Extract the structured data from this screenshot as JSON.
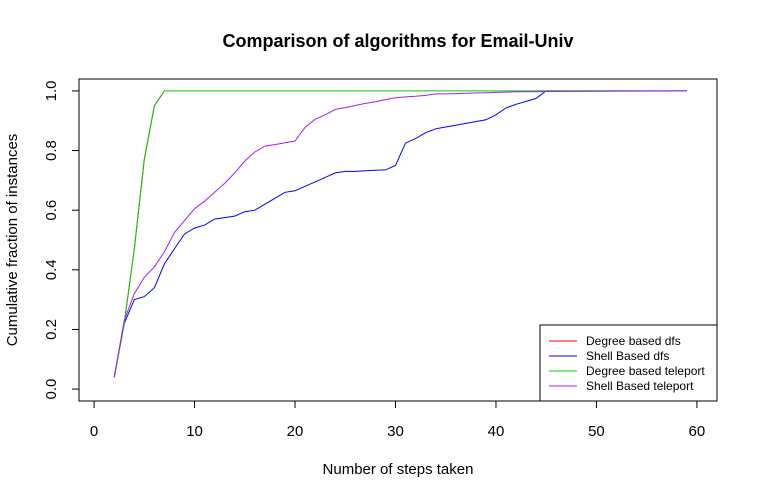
{
  "chart_data": {
    "type": "line",
    "title": "Comparison of algorithms for Email-Univ",
    "xlabel": "Number of steps taken",
    "ylabel": "Cumulative fraction of instances",
    "xlim": [
      -1.5,
      62
    ],
    "ylim": [
      -0.04,
      1.04
    ],
    "xticks": [
      0,
      10,
      20,
      30,
      40,
      50,
      60
    ],
    "yticks": [
      0.0,
      0.2,
      0.4,
      0.6,
      0.8,
      1.0
    ],
    "xtick_labels": [
      "0",
      "10",
      "20",
      "30",
      "40",
      "50",
      "60"
    ],
    "ytick_labels": [
      "0.0",
      "0.2",
      "0.4",
      "0.6",
      "0.8",
      "1.0"
    ],
    "grid": false,
    "legend_position": "bottom-right",
    "series": [
      {
        "name": "Degree based dfs",
        "color": "#ff0000",
        "x": [
          2,
          3,
          4,
          5,
          6,
          7
        ],
        "y": [
          0.04,
          0.22,
          0.47,
          0.77,
          0.95,
          1.0
        ]
      },
      {
        "name": "Shell Based dfs",
        "color": "#0000ff",
        "x": [
          2,
          3,
          4,
          5,
          6,
          7,
          8,
          9,
          10,
          11,
          12,
          13,
          14,
          15,
          16,
          17,
          18,
          19,
          20,
          21,
          22,
          23,
          24,
          25,
          26,
          27,
          28,
          29,
          30,
          31,
          32,
          33,
          34,
          35,
          36,
          37,
          38,
          39,
          40,
          41,
          42,
          43,
          44,
          45,
          59
        ],
        "y": [
          0.04,
          0.22,
          0.3,
          0.31,
          0.34,
          0.42,
          0.47,
          0.52,
          0.54,
          0.55,
          0.57,
          0.575,
          0.58,
          0.595,
          0.6,
          0.62,
          0.64,
          0.66,
          0.665,
          0.68,
          0.695,
          0.71,
          0.725,
          0.73,
          0.73,
          0.732,
          0.734,
          0.735,
          0.75,
          0.825,
          0.84,
          0.86,
          0.873,
          0.879,
          0.885,
          0.891,
          0.897,
          0.903,
          0.92,
          0.943,
          0.955,
          0.965,
          0.975,
          1.0,
          1.0
        ]
      },
      {
        "name": "Degree based teleport",
        "color": "#00cc00",
        "x": [
          2,
          3,
          4,
          5,
          6,
          7,
          59
        ],
        "y": [
          0.04,
          0.22,
          0.47,
          0.77,
          0.95,
          1.0,
          1.0
        ]
      },
      {
        "name": "Shell Based teleport",
        "color": "#a020f0",
        "x": [
          2,
          3,
          4,
          5,
          6,
          7,
          8,
          9,
          10,
          11,
          12,
          13,
          14,
          15,
          16,
          17,
          18,
          19,
          20,
          21,
          22,
          23,
          24,
          25,
          26,
          27,
          28,
          29,
          30,
          31,
          32,
          33,
          34,
          35,
          36,
          37,
          38,
          39,
          40,
          41,
          42,
          43,
          44,
          45,
          59
        ],
        "y": [
          0.04,
          0.23,
          0.32,
          0.375,
          0.41,
          0.46,
          0.525,
          0.565,
          0.605,
          0.63,
          0.66,
          0.69,
          0.725,
          0.765,
          0.795,
          0.815,
          0.82,
          0.826,
          0.832,
          0.878,
          0.905,
          0.92,
          0.938,
          0.944,
          0.951,
          0.958,
          0.964,
          0.971,
          0.977,
          0.98,
          0.982,
          0.985,
          0.99,
          0.99,
          0.991,
          0.992,
          0.993,
          0.994,
          0.995,
          0.996,
          0.997,
          0.997,
          0.997,
          0.998,
          1.0
        ]
      }
    ]
  }
}
